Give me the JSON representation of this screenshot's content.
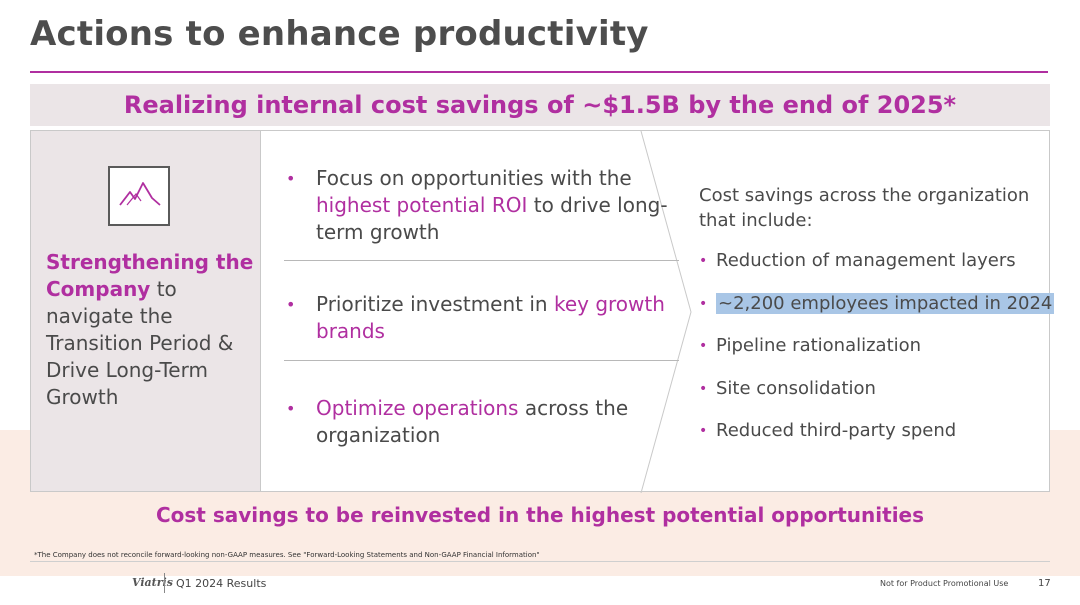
{
  "slide": {
    "title": "Actions to enhance productivity",
    "banner": "Realizing internal cost savings of ~$1.5B by the end of 2025*",
    "left_panel": {
      "icon": "mountain-icon",
      "highlight": "Strengthening the Company",
      "rest": " to navigate the Transition Period & Drive Long-Term Growth"
    },
    "middle": [
      {
        "pre": "Focus on opportunities with the ",
        "accent": "highest potential ROI",
        "post": " to drive long-term growth"
      },
      {
        "pre": "Prioritize investment in ",
        "accent": "key growth brands",
        "post": ""
      },
      {
        "pre": "",
        "accent": "Optimize operations",
        "post": " across the organization"
      }
    ],
    "right": {
      "intro": "Cost savings across the organization that include:",
      "items": [
        "Reduction of management layers",
        "~2,200 employees impacted in 2024",
        "Pipeline rationalization",
        "Site consolidation",
        "Reduced third-party spend"
      ]
    },
    "footer_banner": "Cost savings to be reinvested in the highest potential opportunities",
    "footnote": "*The Company does not reconcile forward-looking non-GAAP measures. See \"Forward-Looking Statements and Non-GAAP Financial Information\"",
    "footer_logo": "Viatris",
    "footer_left": "Q1 2024 Results",
    "footer_right": "Not for Product Promotional Use",
    "page_number": "17"
  },
  "colors": {
    "accent": "#b02fa0",
    "panel": "#ebe5e7",
    "peach": "#fbece4",
    "selection": "#a9c6e6"
  }
}
